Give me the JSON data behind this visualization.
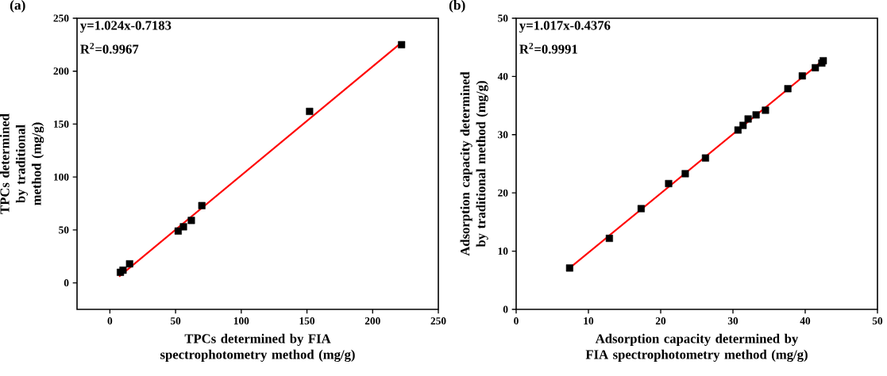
{
  "chart_data": [
    {
      "type": "scatter",
      "title": "(a)",
      "xlabel": "TPCs determined by FIA spectrophotometry method (mg/g)",
      "ylabel": "TPCs determined by traditional method (mg/g)",
      "annotations": [
        "y=1.024x-0.7183",
        "R$^{2}$=0.9967"
      ],
      "xlim": [
        -25,
        250
      ],
      "ylim": [
        -25,
        250
      ],
      "xticks": [
        0,
        50,
        100,
        150,
        200,
        250
      ],
      "yticks": [
        0,
        50,
        100,
        150,
        200,
        250
      ],
      "series": [
        {
          "marker": "square",
          "color": "#000000",
          "x": [
            8,
            10,
            15,
            52,
            56,
            62,
            70,
            152,
            222
          ],
          "values": [
            10,
            12,
            18,
            49,
            53,
            59,
            73,
            162,
            225
          ]
        },
        {
          "type": "line",
          "marker": "none",
          "color": "#ff0000",
          "x": [
            7,
            222
          ],
          "values": [
            6,
            227
          ]
        }
      ]
    },
    {
      "type": "scatter",
      "title": "(b)",
      "xlabel": "Adsorption capacity determined by FIA spectrophotometry method (mg/g)",
      "ylabel": "Adsorption capacity determined by traditional method (mg/g)",
      "annotations": [
        "y=1.017x-0.4376",
        "R$^{2}$=0.9991"
      ],
      "xlim": [
        0,
        50
      ],
      "ylim": [
        0,
        50
      ],
      "xticks": [
        0,
        10,
        20,
        30,
        40,
        50
      ],
      "yticks": [
        0,
        10,
        20,
        30,
        40,
        50
      ],
      "series": [
        {
          "marker": "square",
          "color": "#000000",
          "x": [
            7.4,
            12.9,
            17.3,
            21.1,
            23.4,
            26.2,
            30.7,
            31.4,
            32.1,
            33.2,
            34.5,
            37.6,
            39.6,
            41.4,
            42.3,
            42.5
          ],
          "values": [
            7.1,
            12.2,
            17.3,
            21.6,
            23.3,
            26.0,
            30.8,
            31.6,
            32.7,
            33.4,
            34.2,
            37.9,
            40.1,
            41.5,
            42.3,
            42.7
          ]
        },
        {
          "type": "line",
          "marker": "none",
          "color": "#ff0000",
          "x": [
            7.4,
            42.5
          ],
          "values": [
            7.1,
            42.8
          ]
        }
      ]
    }
  ]
}
